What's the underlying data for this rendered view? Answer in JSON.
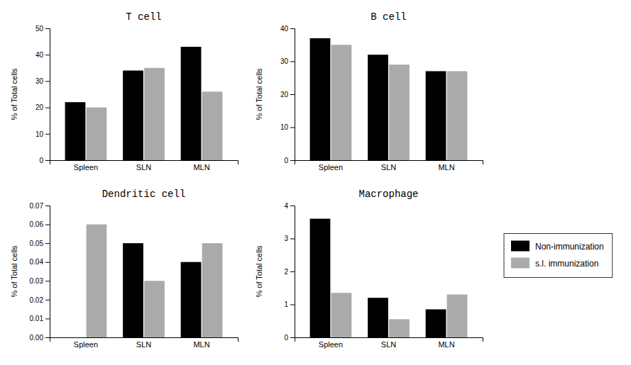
{
  "chart_data": [
    {
      "type": "bar",
      "title": "T cell",
      "ylabel": "% of Total cells",
      "categories": [
        "Spleen",
        "SLN",
        "MLN"
      ],
      "series": [
        {
          "color": "#000000",
          "values": [
            22,
            34,
            43
          ]
        },
        {
          "color": "#aaaaaa",
          "values": [
            20,
            35,
            26
          ]
        }
      ],
      "ylim": [
        0,
        50
      ],
      "yticks": [
        0,
        10,
        20,
        30,
        40,
        50
      ],
      "grid": false
    },
    {
      "type": "bar",
      "title": "B cell",
      "ylabel": "% of Total cells",
      "categories": [
        "Spleen",
        "SLN",
        "MLN"
      ],
      "series": [
        {
          "color": "#000000",
          "values": [
            37,
            32,
            27
          ]
        },
        {
          "color": "#aaaaaa",
          "values": [
            35,
            29,
            27
          ]
        }
      ],
      "ylim": [
        0,
        40
      ],
      "yticks": [
        0,
        10,
        20,
        30,
        40
      ],
      "grid": false
    },
    {
      "type": "bar",
      "title": "Dendritic cell",
      "ylabel": "% of Total cells",
      "categories": [
        "Spleen",
        "SLN",
        "MLN"
      ],
      "series": [
        {
          "color": "#000000",
          "values": [
            0.0,
            0.05,
            0.04
          ]
        },
        {
          "color": "#aaaaaa",
          "values": [
            0.06,
            0.03,
            0.05
          ]
        }
      ],
      "ylim": [
        0.0,
        0.07
      ],
      "yticks": [
        {
          "value": 0,
          "label": "0.00"
        },
        0.01,
        0.02,
        0.03,
        0.04,
        0.05,
        0.06,
        0.07
      ],
      "grid": false
    },
    {
      "type": "bar",
      "title": "Macrophage",
      "ylabel": "% of Total cells",
      "categories": [
        "Spleen",
        "SLN",
        "MLN"
      ],
      "series": [
        {
          "name": "Non-immunization",
          "color": "#000000",
          "values": [
            3.6,
            1.2,
            0.85
          ]
        },
        {
          "name": "s.l. immunization",
          "color": "#aaaaaa",
          "values": [
            1.35,
            0.55,
            1.3
          ]
        }
      ],
      "ylim": [
        0,
        4
      ],
      "yticks": [
        0,
        1,
        2,
        3,
        4
      ],
      "grid": false,
      "legend": "right"
    }
  ]
}
